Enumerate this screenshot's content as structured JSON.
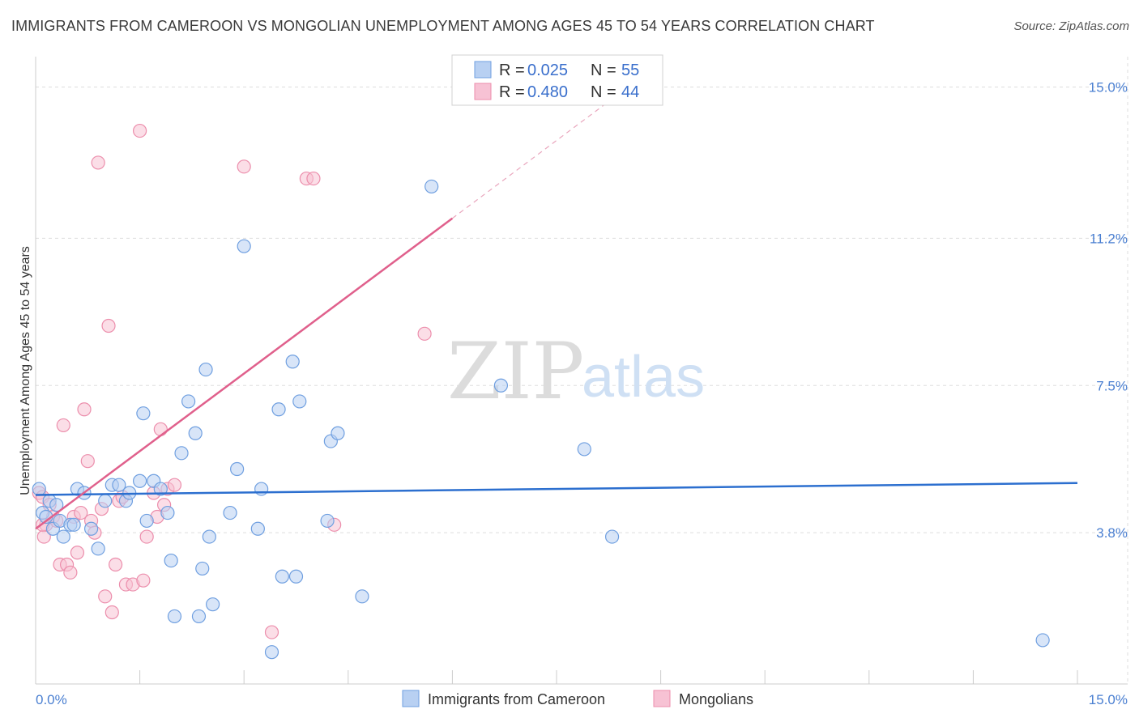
{
  "header": {
    "title": "IMMIGRANTS FROM CAMEROON VS MONGOLIAN UNEMPLOYMENT AMONG AGES 45 TO 54 YEARS CORRELATION CHART",
    "source": "Source: ZipAtlas.com"
  },
  "watermark": {
    "zip": "ZIP",
    "atlas": "atlas"
  },
  "legend": {
    "series": [
      {
        "r_label": "R =",
        "r_value": "0.025",
        "n_label": "N =",
        "n_value": "55"
      },
      {
        "r_label": "R =",
        "r_value": "0.480",
        "n_label": "N =",
        "n_value": "44"
      }
    ]
  },
  "bottom_legend": [
    "Immigrants from Cameroon",
    "Mongolians"
  ],
  "colors": {
    "blue_fill": "#b8d0f2",
    "blue_stroke": "#6f9fe0",
    "blue_line": "#2c6fcf",
    "pink_fill": "#f7c2d4",
    "pink_stroke": "#ec8eac",
    "pink_line": "#e0608c",
    "grid": "#dddddd",
    "tick_text": "#4a7fd1"
  },
  "chart_data": {
    "type": "scatter",
    "title": "IMMIGRANTS FROM CAMEROON VS MONGOLIAN UNEMPLOYMENT AMONG AGES 45 TO 54 YEARS CORRELATION CHART",
    "xlabel": "",
    "ylabel": "Unemployment Among Ages 45 to 54 years",
    "xlim": [
      0,
      15
    ],
    "ylim": [
      0,
      15.6
    ],
    "x_tick_labels": [
      "0.0%",
      "15.0%"
    ],
    "y_ticks": [
      3.8,
      7.5,
      11.2,
      15.0
    ],
    "y_tick_labels": [
      "3.8%",
      "7.5%",
      "11.2%",
      "15.0%"
    ],
    "series": [
      {
        "name": "Immigrants from Cameroon",
        "R": 0.025,
        "N": 55,
        "trend": {
          "x0": 0,
          "y0": 4.75,
          "x1": 15,
          "y1": 5.05
        },
        "points": [
          [
            0.05,
            4.9
          ],
          [
            0.1,
            4.3
          ],
          [
            0.15,
            4.2
          ],
          [
            0.2,
            4.6
          ],
          [
            0.25,
            3.9
          ],
          [
            0.3,
            4.5
          ],
          [
            0.35,
            4.1
          ],
          [
            0.4,
            3.7
          ],
          [
            0.5,
            4.0
          ],
          [
            0.55,
            4.0
          ],
          [
            0.6,
            4.9
          ],
          [
            0.7,
            4.8
          ],
          [
            0.8,
            3.9
          ],
          [
            0.9,
            3.4
          ],
          [
            1.0,
            4.6
          ],
          [
            1.1,
            5.0
          ],
          [
            1.2,
            5.0
          ],
          [
            1.3,
            4.6
          ],
          [
            1.35,
            4.8
          ],
          [
            1.5,
            5.1
          ],
          [
            1.55,
            6.8
          ],
          [
            1.6,
            4.1
          ],
          [
            1.7,
            5.1
          ],
          [
            1.8,
            4.9
          ],
          [
            1.9,
            4.3
          ],
          [
            1.95,
            3.1
          ],
          [
            2.0,
            1.7
          ],
          [
            2.1,
            5.8
          ],
          [
            2.2,
            7.1
          ],
          [
            2.3,
            6.3
          ],
          [
            2.35,
            1.7
          ],
          [
            2.4,
            2.9
          ],
          [
            2.45,
            7.9
          ],
          [
            2.5,
            3.7
          ],
          [
            2.55,
            2.0
          ],
          [
            2.8,
            4.3
          ],
          [
            2.9,
            5.4
          ],
          [
            3.0,
            11.0
          ],
          [
            3.2,
            3.9
          ],
          [
            3.25,
            4.9
          ],
          [
            3.4,
            0.8
          ],
          [
            3.5,
            6.9
          ],
          [
            3.55,
            2.7
          ],
          [
            3.7,
            8.1
          ],
          [
            3.75,
            2.7
          ],
          [
            3.8,
            7.1
          ],
          [
            4.2,
            4.1
          ],
          [
            4.25,
            6.1
          ],
          [
            4.35,
            6.3
          ],
          [
            4.7,
            2.2
          ],
          [
            5.7,
            12.5
          ],
          [
            6.7,
            7.5
          ],
          [
            7.9,
            5.9
          ],
          [
            8.3,
            3.7
          ],
          [
            14.5,
            1.1
          ]
        ]
      },
      {
        "name": "Mongolians",
        "R": 0.48,
        "N": 44,
        "trend": {
          "x0": 0,
          "y0": 3.9,
          "x1": 6.0,
          "y1": 11.7
        },
        "trend_dashed": {
          "x0": 6.0,
          "y0": 11.7,
          "x1": 8.3,
          "y1": 14.7
        },
        "points": [
          [
            0.05,
            4.8
          ],
          [
            0.1,
            4.7
          ],
          [
            0.12,
            3.7
          ],
          [
            0.15,
            4.0
          ],
          [
            0.2,
            4.5
          ],
          [
            0.25,
            4.2
          ],
          [
            0.3,
            4.1
          ],
          [
            0.35,
            3.0
          ],
          [
            0.4,
            6.5
          ],
          [
            0.45,
            3.0
          ],
          [
            0.5,
            2.8
          ],
          [
            0.55,
            4.2
          ],
          [
            0.6,
            3.3
          ],
          [
            0.65,
            4.3
          ],
          [
            0.7,
            6.9
          ],
          [
            0.75,
            5.6
          ],
          [
            0.8,
            4.1
          ],
          [
            0.85,
            3.8
          ],
          [
            0.9,
            13.1
          ],
          [
            0.95,
            4.4
          ],
          [
            1.0,
            2.2
          ],
          [
            1.05,
            9.0
          ],
          [
            1.1,
            1.8
          ],
          [
            1.15,
            3.0
          ],
          [
            1.2,
            4.6
          ],
          [
            1.25,
            4.7
          ],
          [
            1.3,
            2.5
          ],
          [
            1.4,
            2.5
          ],
          [
            1.5,
            13.9
          ],
          [
            1.55,
            2.6
          ],
          [
            1.6,
            3.7
          ],
          [
            1.7,
            4.8
          ],
          [
            1.75,
            4.2
          ],
          [
            1.8,
            6.4
          ],
          [
            1.85,
            4.5
          ],
          [
            1.9,
            4.9
          ],
          [
            2.0,
            5.0
          ],
          [
            3.0,
            13.0
          ],
          [
            3.4,
            1.3
          ],
          [
            3.9,
            12.7
          ],
          [
            4.0,
            12.7
          ],
          [
            4.3,
            4.0
          ],
          [
            5.6,
            8.8
          ],
          [
            0.1,
            4.0
          ]
        ]
      }
    ]
  }
}
